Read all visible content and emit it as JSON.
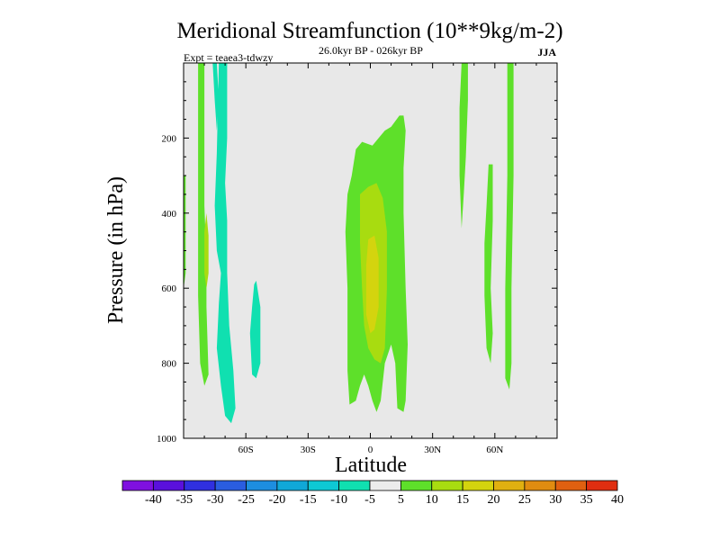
{
  "chart_data": {
    "type": "contour",
    "title": "Meridional Streamfunction (10**9kg/m-2)",
    "time_range": "26.0kyr BP - 026kyr BP",
    "experiment": "Expt = teaea3-tdwzy",
    "season": "JJA",
    "xlabel": "Latitude",
    "ylabel": "Pressure (in hPa)",
    "xlim": [
      -90,
      90
    ],
    "ylim": [
      1000,
      0
    ],
    "x_ticks": [
      {
        "value": -60,
        "label": "60S"
      },
      {
        "value": -30,
        "label": "30S"
      },
      {
        "value": 0,
        "label": "0"
      },
      {
        "value": 30,
        "label": "30N"
      },
      {
        "value": 60,
        "label": "60N"
      }
    ],
    "y_ticks": [
      {
        "value": 200,
        "label": "200"
      },
      {
        "value": 400,
        "label": "400"
      },
      {
        "value": 600,
        "label": "600"
      },
      {
        "value": 800,
        "label": "800"
      },
      {
        "value": 1000,
        "label": "1000"
      }
    ],
    "colorbar": {
      "levels": [
        -40,
        -35,
        -30,
        -25,
        -20,
        -15,
        -10,
        -5,
        5,
        10,
        15,
        20,
        25,
        30,
        35,
        40
      ],
      "labels": [
        "-40",
        "-35",
        "-30",
        "-25",
        "-20",
        "-15",
        "-10",
        "-5",
        "5",
        "10",
        "15",
        "20",
        "25",
        "30",
        "35",
        "40"
      ],
      "colors": [
        "#7f10e0",
        "#5a10dc",
        "#3030e0",
        "#2a5de0",
        "#1d8ee0",
        "#10a8d8",
        "#0ec8d4",
        "#10e0b0",
        "#ececec",
        "#5ee02a",
        "#a8dc10",
        "#d4d40e",
        "#e0b010",
        "#e08c10",
        "#e06010",
        "#e02e10"
      ]
    },
    "background_color": "#e8e8e8",
    "regions": [
      {
        "name": "sh-polar-positive-cell",
        "value": 7.5,
        "polygon": [
          [
            -83,
            0
          ],
          [
            -80,
            0
          ],
          [
            -80,
            380
          ],
          [
            -79,
            520
          ],
          [
            -79,
            650
          ],
          [
            -78,
            830
          ],
          [
            -80,
            860
          ],
          [
            -82,
            800
          ],
          [
            -83,
            620
          ],
          [
            -83,
            420
          ]
        ]
      },
      {
        "name": "sh-polar-positive-core",
        "value": 12,
        "polygon": [
          [
            -79,
            400
          ],
          [
            -78,
            460
          ],
          [
            -78,
            560
          ],
          [
            -79,
            600
          ],
          [
            -80,
            560
          ],
          [
            -80,
            450
          ]
        ]
      },
      {
        "name": "sh-column-negative",
        "value": -7.5,
        "polygon": [
          [
            -73,
            0
          ],
          [
            -69,
            0
          ],
          [
            -69,
            200
          ],
          [
            -70,
            320
          ],
          [
            -69,
            420
          ],
          [
            -69,
            560
          ],
          [
            -68,
            700
          ],
          [
            -66,
            820
          ],
          [
            -65,
            920
          ],
          [
            -67,
            960
          ],
          [
            -70,
            940
          ],
          [
            -72,
            860
          ],
          [
            -74,
            760
          ],
          [
            -73,
            640
          ],
          [
            -72,
            560
          ],
          [
            -74,
            500
          ],
          [
            -75,
            380
          ],
          [
            -74,
            240
          ]
        ]
      },
      {
        "name": "sh-narrow-negative",
        "value": -7.5,
        "polygon": [
          [
            -76,
            0
          ],
          [
            -74,
            0
          ],
          [
            -73,
            100
          ],
          [
            -74,
            180
          ],
          [
            -75,
            100
          ]
        ]
      },
      {
        "name": "sh-midlat-negative",
        "value": -7.5,
        "polygon": [
          [
            -56,
            590
          ],
          [
            -55,
            580
          ],
          [
            -53,
            650
          ],
          [
            -53,
            800
          ],
          [
            -55,
            840
          ],
          [
            -57,
            830
          ],
          [
            -58,
            720
          ],
          [
            -57,
            650
          ]
        ]
      },
      {
        "name": "tropical-positive-outer",
        "value": 7.5,
        "polygon": [
          [
            -7,
            230
          ],
          [
            -4,
            210
          ],
          [
            1,
            220
          ],
          [
            4,
            200
          ],
          [
            7,
            180
          ],
          [
            10,
            170
          ],
          [
            14,
            140
          ],
          [
            16,
            140
          ],
          [
            17,
            180
          ],
          [
            16,
            280
          ],
          [
            16,
            400
          ],
          [
            17,
            600
          ],
          [
            18,
            750
          ],
          [
            17,
            900
          ],
          [
            16,
            930
          ],
          [
            13,
            920
          ],
          [
            12,
            800
          ],
          [
            10,
            750
          ],
          [
            7,
            800
          ],
          [
            5,
            900
          ],
          [
            3,
            930
          ],
          [
            1,
            900
          ],
          [
            -1,
            860
          ],
          [
            -3,
            830
          ],
          [
            -5,
            860
          ],
          [
            -7,
            900
          ],
          [
            -10,
            910
          ],
          [
            -11,
            820
          ],
          [
            -11,
            600
          ],
          [
            -12,
            450
          ],
          [
            -11,
            350
          ],
          [
            -9,
            300
          ]
        ]
      },
      {
        "name": "tropical-positive-mid",
        "value": 12.5,
        "polygon": [
          [
            -5,
            350
          ],
          [
            -1,
            330
          ],
          [
            3,
            320
          ],
          [
            6,
            360
          ],
          [
            8,
            450
          ],
          [
            8,
            600
          ],
          [
            7,
            760
          ],
          [
            5,
            800
          ],
          [
            2,
            790
          ],
          [
            -1,
            760
          ],
          [
            -3,
            700
          ],
          [
            -4,
            600
          ],
          [
            -5,
            480
          ]
        ]
      },
      {
        "name": "tropical-positive-core",
        "value": 15,
        "polygon": [
          [
            -1,
            470
          ],
          [
            2,
            460
          ],
          [
            4,
            520
          ],
          [
            4,
            650
          ],
          [
            2,
            710
          ],
          [
            0,
            720
          ],
          [
            -2,
            670
          ],
          [
            -2,
            540
          ]
        ]
      },
      {
        "name": "nh-45n-positive",
        "value": 7.5,
        "polygon": [
          [
            44,
            0
          ],
          [
            47,
            0
          ],
          [
            47,
            100
          ],
          [
            46,
            250
          ],
          [
            45,
            350
          ],
          [
            44,
            440
          ],
          [
            43,
            300
          ],
          [
            43,
            120
          ]
        ]
      },
      {
        "name": "nh-55n-positive",
        "value": 7.5,
        "polygon": [
          [
            57,
            270
          ],
          [
            59,
            270
          ],
          [
            59,
            420
          ],
          [
            58,
            600
          ],
          [
            59,
            720
          ],
          [
            58,
            800
          ],
          [
            56,
            760
          ],
          [
            55,
            620
          ],
          [
            55,
            480
          ],
          [
            56,
            380
          ]
        ]
      },
      {
        "name": "nh-68n-positive",
        "value": 7.5,
        "polygon": [
          [
            66,
            0
          ],
          [
            69,
            0
          ],
          [
            69,
            300
          ],
          [
            68,
            600
          ],
          [
            68,
            800
          ],
          [
            67,
            870
          ],
          [
            65,
            840
          ],
          [
            65,
            600
          ],
          [
            66,
            300
          ]
        ]
      },
      {
        "name": "sh-edge-positive",
        "value": 7.5,
        "polygon": [
          [
            -90,
            300
          ],
          [
            -89,
            300
          ],
          [
            -89,
            560
          ],
          [
            -90,
            600
          ]
        ]
      }
    ]
  }
}
